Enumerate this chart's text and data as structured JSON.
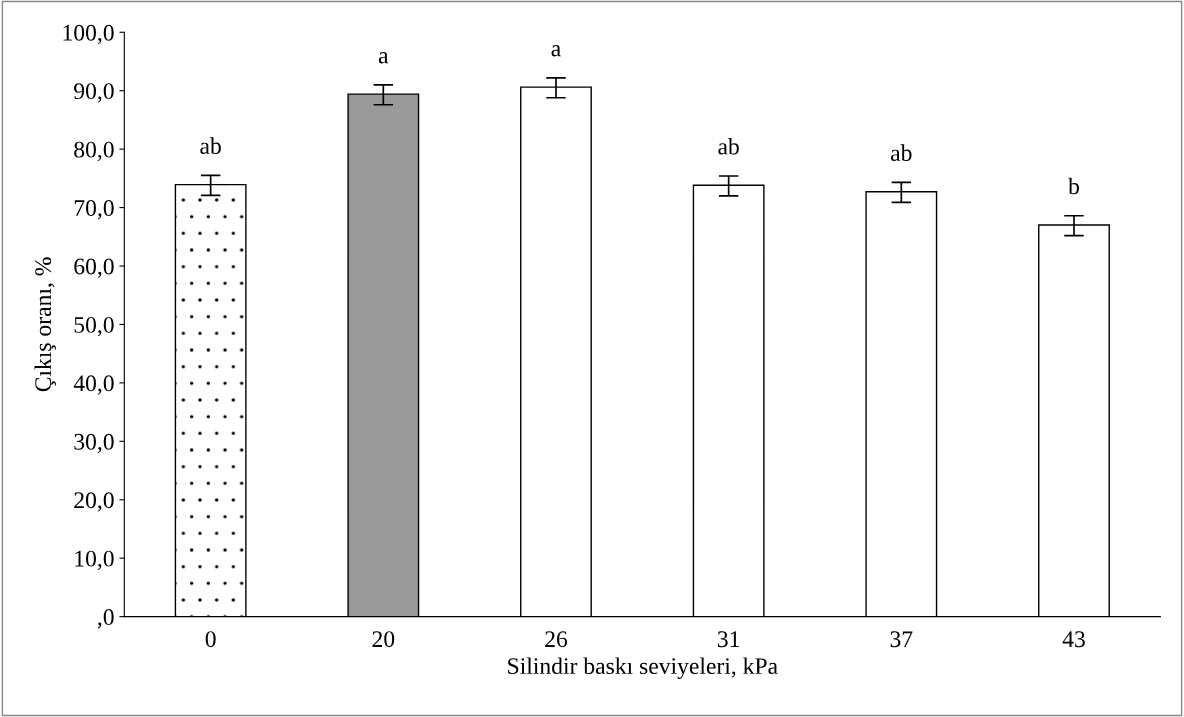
{
  "chart_data": {
    "type": "bar",
    "xlabel": "Silindir baskı seviyeleri, kPa",
    "ylabel": "Çıkış oranı, %",
    "categories": [
      "0",
      "20",
      "26",
      "31",
      "37",
      "43"
    ],
    "values": [
      73.8,
      89.3,
      90.5,
      73.7,
      72.6,
      66.9
    ],
    "errors": [
      1.7,
      1.7,
      1.7,
      1.7,
      1.7,
      1.7
    ],
    "colors": [
      "#ffffff",
      "#9a9a9a",
      "#ffffff",
      "#ffffff",
      "#ffffff",
      "#ffffff"
    ],
    "ylim": [
      0,
      100
    ],
    "yticks": [
      {
        "value": 0,
        "label": ",0"
      },
      {
        "value": 10,
        "label": "10,0"
      },
      {
        "value": 20,
        "label": "20,0"
      },
      {
        "value": 30,
        "label": "30,0"
      },
      {
        "value": 40,
        "label": "40,0"
      },
      {
        "value": 50,
        "label": "50,0"
      },
      {
        "value": 60,
        "label": "60,0"
      },
      {
        "value": 70,
        "label": "70,0"
      },
      {
        "value": 80,
        "label": "80,0"
      },
      {
        "value": 90,
        "label": "90,0"
      },
      {
        "value": 100,
        "label": "100,0"
      }
    ],
    "annotations": [
      "ab",
      "a",
      "a",
      "ab",
      "ab",
      "b"
    ]
  }
}
